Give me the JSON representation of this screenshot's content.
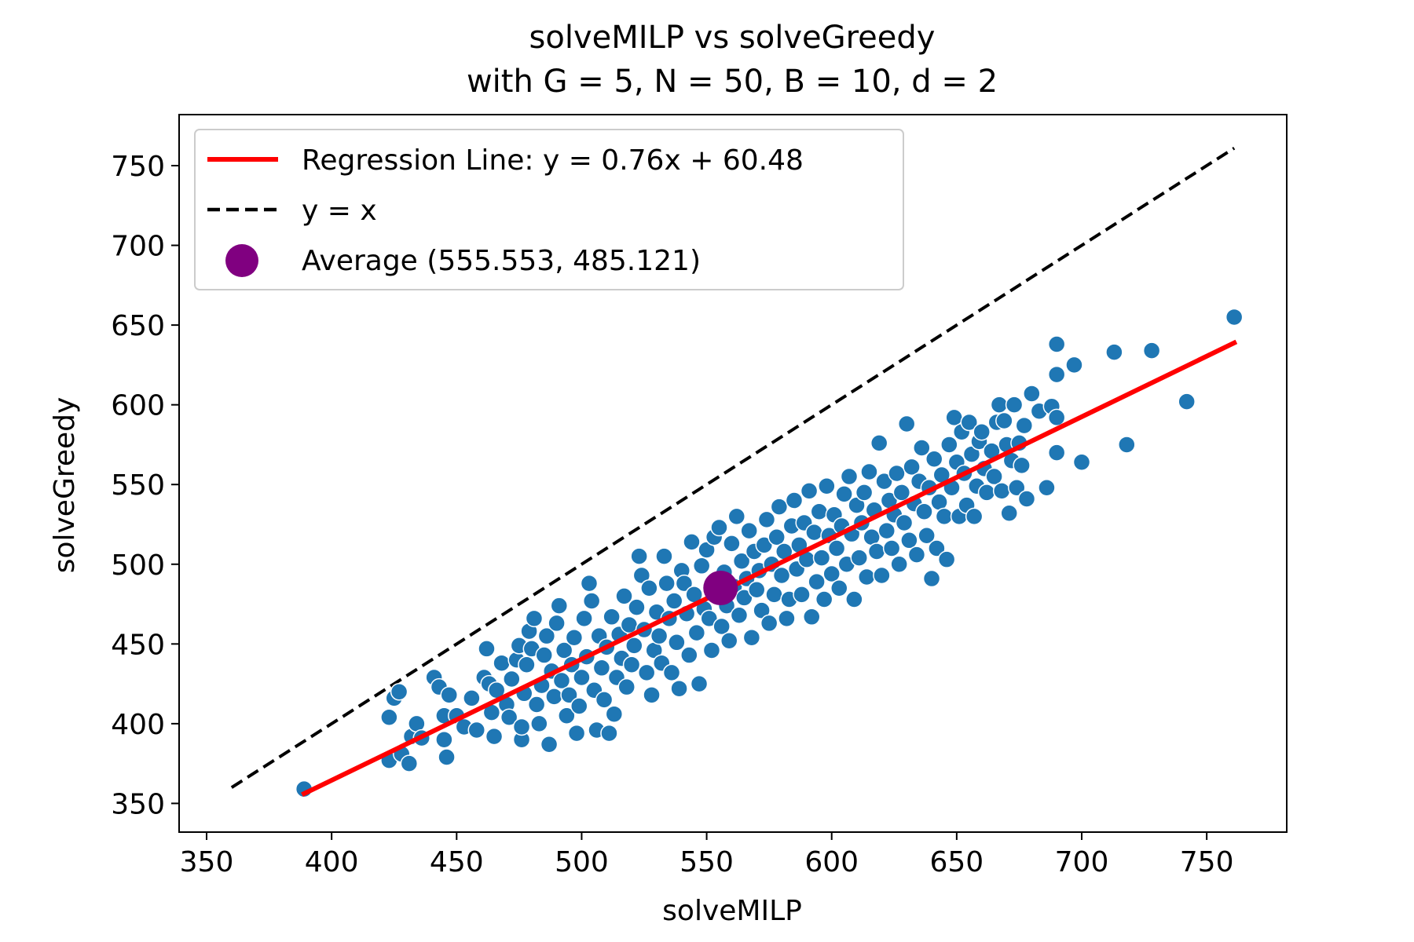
{
  "chart_data": {
    "type": "scatter",
    "title_line1": "solveMILP vs solveGreedy",
    "title_line2": "with G = 5, N = 50, B = 10, d = 2",
    "xlabel": "solveMILP",
    "ylabel": "solveGreedy",
    "xlim": [
      339,
      782
    ],
    "ylim": [
      332,
      782
    ],
    "xticks": [
      350,
      400,
      450,
      500,
      550,
      600,
      650,
      700,
      750
    ],
    "yticks": [
      350,
      400,
      450,
      500,
      550,
      600,
      650,
      700,
      750
    ],
    "grid": false,
    "legend_position": "upper-left",
    "colors": {
      "points": "#1f77b4",
      "regression": "#ff0000",
      "identity": "#000000",
      "average": "#800080"
    },
    "regression": {
      "label": "Regression Line: y = 0.76x + 60.48",
      "slope": 0.76,
      "intercept": 60.48,
      "x_range": [
        389,
        761
      ]
    },
    "identity": {
      "label": "y = x",
      "x_range": [
        360,
        761
      ]
    },
    "average": {
      "label": "Average (555.553, 485.121)",
      "x": 555.553,
      "y": 485.121
    },
    "points": [
      [
        389,
        359
      ],
      [
        423,
        377
      ],
      [
        423,
        404
      ],
      [
        425,
        416
      ],
      [
        427,
        420
      ],
      [
        428,
        381
      ],
      [
        431,
        375
      ],
      [
        432,
        392
      ],
      [
        434,
        400
      ],
      [
        436,
        391
      ],
      [
        441,
        429
      ],
      [
        443,
        423
      ],
      [
        445,
        405
      ],
      [
        445,
        390
      ],
      [
        446,
        379
      ],
      [
        447,
        418
      ],
      [
        450,
        405
      ],
      [
        453,
        398
      ],
      [
        456,
        416
      ],
      [
        458,
        396
      ],
      [
        461,
        429
      ],
      [
        462,
        447
      ],
      [
        463,
        425
      ],
      [
        464,
        407
      ],
      [
        465,
        392
      ],
      [
        466,
        421
      ],
      [
        468,
        438
      ],
      [
        470,
        412
      ],
      [
        471,
        404
      ],
      [
        472,
        428
      ],
      [
        474,
        440
      ],
      [
        475,
        449
      ],
      [
        476,
        390
      ],
      [
        476,
        398
      ],
      [
        477,
        419
      ],
      [
        478,
        437
      ],
      [
        479,
        458
      ],
      [
        480,
        447
      ],
      [
        481,
        466
      ],
      [
        482,
        412
      ],
      [
        483,
        400
      ],
      [
        484,
        424
      ],
      [
        485,
        443
      ],
      [
        486,
        455
      ],
      [
        487,
        387
      ],
      [
        488,
        433
      ],
      [
        489,
        417
      ],
      [
        490,
        463
      ],
      [
        491,
        474
      ],
      [
        492,
        427
      ],
      [
        493,
        446
      ],
      [
        494,
        405
      ],
      [
        495,
        418
      ],
      [
        496,
        437
      ],
      [
        497,
        454
      ],
      [
        498,
        394
      ],
      [
        499,
        411
      ],
      [
        500,
        429
      ],
      [
        501,
        466
      ],
      [
        502,
        442
      ],
      [
        503,
        488
      ],
      [
        504,
        477
      ],
      [
        505,
        421
      ],
      [
        506,
        396
      ],
      [
        507,
        455
      ],
      [
        508,
        435
      ],
      [
        509,
        415
      ],
      [
        510,
        448
      ],
      [
        511,
        394
      ],
      [
        512,
        467
      ],
      [
        513,
        406
      ],
      [
        514,
        429
      ],
      [
        515,
        456
      ],
      [
        516,
        441
      ],
      [
        517,
        480
      ],
      [
        518,
        423
      ],
      [
        519,
        462
      ],
      [
        520,
        437
      ],
      [
        521,
        449
      ],
      [
        522,
        473
      ],
      [
        523,
        505
      ],
      [
        524,
        493
      ],
      [
        525,
        459
      ],
      [
        526,
        432
      ],
      [
        527,
        485
      ],
      [
        528,
        418
      ],
      [
        529,
        446
      ],
      [
        530,
        470
      ],
      [
        531,
        455
      ],
      [
        532,
        438
      ],
      [
        533,
        505
      ],
      [
        534,
        488
      ],
      [
        535,
        466
      ],
      [
        536,
        432
      ],
      [
        537,
        477
      ],
      [
        538,
        451
      ],
      [
        539,
        422
      ],
      [
        540,
        496
      ],
      [
        541,
        488
      ],
      [
        542,
        469
      ],
      [
        543,
        443
      ],
      [
        544,
        514
      ],
      [
        545,
        481
      ],
      [
        546,
        457
      ],
      [
        547,
        425
      ],
      [
        548,
        499
      ],
      [
        549,
        472
      ],
      [
        550,
        509
      ],
      [
        551,
        466
      ],
      [
        552,
        446
      ],
      [
        553,
        517
      ],
      [
        554,
        488
      ],
      [
        555,
        523
      ],
      [
        556,
        461
      ],
      [
        557,
        495
      ],
      [
        558,
        474
      ],
      [
        559,
        452
      ],
      [
        560,
        513
      ],
      [
        561,
        486
      ],
      [
        562,
        530
      ],
      [
        563,
        468
      ],
      [
        564,
        502
      ],
      [
        565,
        479
      ],
      [
        566,
        491
      ],
      [
        567,
        521
      ],
      [
        568,
        454
      ],
      [
        569,
        508
      ],
      [
        570,
        484
      ],
      [
        571,
        496
      ],
      [
        572,
        471
      ],
      [
        573,
        512
      ],
      [
        574,
        528
      ],
      [
        575,
        463
      ],
      [
        576,
        500
      ],
      [
        577,
        481
      ],
      [
        578,
        517
      ],
      [
        579,
        536
      ],
      [
        580,
        493
      ],
      [
        581,
        508
      ],
      [
        582,
        466
      ],
      [
        583,
        478
      ],
      [
        584,
        524
      ],
      [
        585,
        540
      ],
      [
        586,
        497
      ],
      [
        587,
        512
      ],
      [
        588,
        481
      ],
      [
        589,
        526
      ],
      [
        590,
        503
      ],
      [
        591,
        546
      ],
      [
        592,
        467
      ],
      [
        593,
        520
      ],
      [
        594,
        489
      ],
      [
        595,
        533
      ],
      [
        596,
        504
      ],
      [
        597,
        478
      ],
      [
        598,
        549
      ],
      [
        599,
        518
      ],
      [
        600,
        494
      ],
      [
        601,
        531
      ],
      [
        602,
        510
      ],
      [
        603,
        485
      ],
      [
        604,
        524
      ],
      [
        605,
        544
      ],
      [
        606,
        500
      ],
      [
        607,
        555
      ],
      [
        608,
        519
      ],
      [
        609,
        478
      ],
      [
        610,
        537
      ],
      [
        611,
        504
      ],
      [
        612,
        526
      ],
      [
        613,
        545
      ],
      [
        614,
        492
      ],
      [
        615,
        558
      ],
      [
        616,
        517
      ],
      [
        617,
        534
      ],
      [
        618,
        508
      ],
      [
        619,
        576
      ],
      [
        620,
        493
      ],
      [
        621,
        552
      ],
      [
        622,
        521
      ],
      [
        623,
        540
      ],
      [
        624,
        510
      ],
      [
        625,
        531
      ],
      [
        626,
        557
      ],
      [
        627,
        500
      ],
      [
        628,
        545
      ],
      [
        629,
        526
      ],
      [
        630,
        588
      ],
      [
        631,
        515
      ],
      [
        632,
        561
      ],
      [
        633,
        538
      ],
      [
        634,
        506
      ],
      [
        635,
        552
      ],
      [
        636,
        573
      ],
      [
        637,
        533
      ],
      [
        638,
        518
      ],
      [
        639,
        548
      ],
      [
        640,
        491
      ],
      [
        641,
        566
      ],
      [
        642,
        510
      ],
      [
        643,
        539
      ],
      [
        644,
        556
      ],
      [
        645,
        530
      ],
      [
        646,
        503
      ],
      [
        647,
        575
      ],
      [
        648,
        548
      ],
      [
        649,
        592
      ],
      [
        650,
        564
      ],
      [
        651,
        530
      ],
      [
        652,
        583
      ],
      [
        653,
        557
      ],
      [
        654,
        537
      ],
      [
        655,
        589
      ],
      [
        656,
        569
      ],
      [
        657,
        530
      ],
      [
        658,
        549
      ],
      [
        659,
        577
      ],
      [
        660,
        583
      ],
      [
        661,
        560
      ],
      [
        662,
        545
      ],
      [
        664,
        571
      ],
      [
        665,
        555
      ],
      [
        666,
        589
      ],
      [
        667,
        600
      ],
      [
        668,
        546
      ],
      [
        669,
        590
      ],
      [
        670,
        575
      ],
      [
        671,
        532
      ],
      [
        672,
        565
      ],
      [
        673,
        600
      ],
      [
        674,
        548
      ],
      [
        675,
        576
      ],
      [
        676,
        562
      ],
      [
        677,
        587
      ],
      [
        678,
        541
      ],
      [
        680,
        607
      ],
      [
        683,
        596
      ],
      [
        686,
        548
      ],
      [
        688,
        599
      ],
      [
        690,
        638
      ],
      [
        690,
        619
      ],
      [
        690,
        592
      ],
      [
        690,
        570
      ],
      [
        697,
        625
      ],
      [
        700,
        564
      ],
      [
        713,
        633
      ],
      [
        718,
        575
      ],
      [
        728,
        634
      ],
      [
        742,
        602
      ],
      [
        761,
        655
      ]
    ]
  }
}
